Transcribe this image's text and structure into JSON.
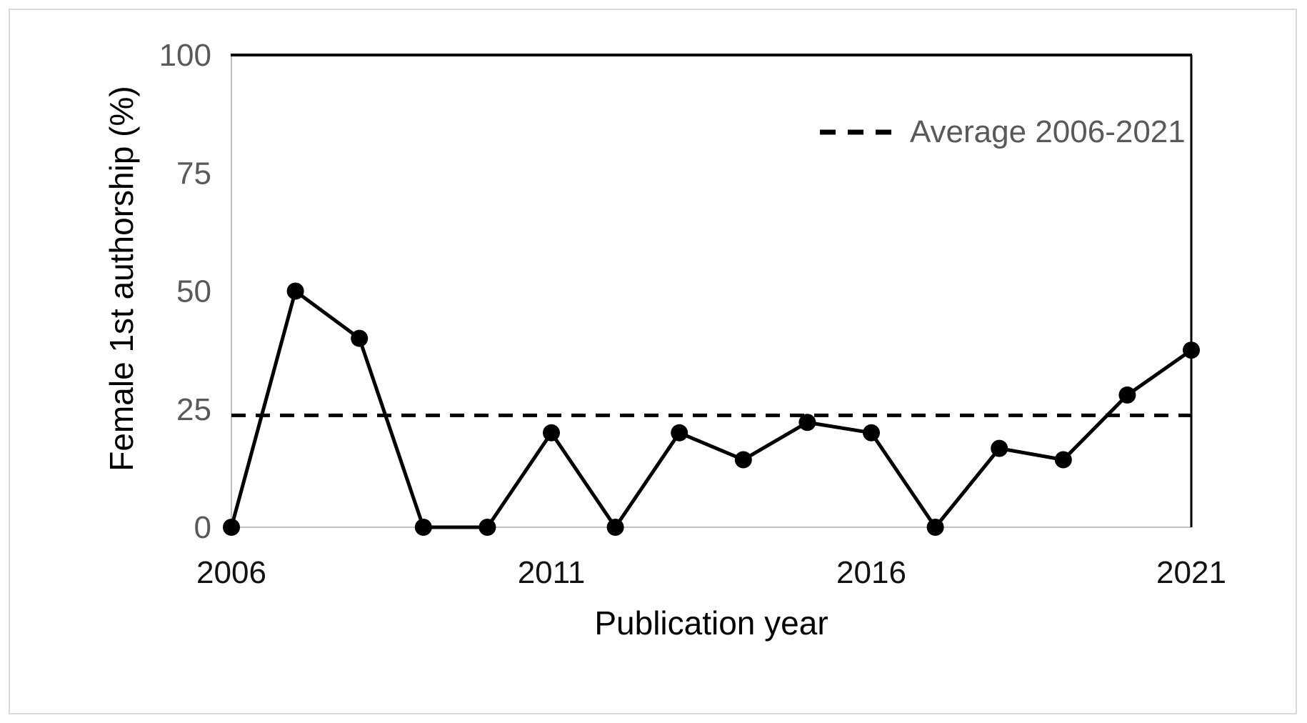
{
  "figure": {
    "y_axis_title": "Female 1st authorship (%)",
    "x_axis_title": "Publication year",
    "legend_label": "Average 2006-2021"
  },
  "chart_data": {
    "type": "line",
    "title": "",
    "xlabel": "Publication year",
    "ylabel": "Female 1st authorship (%)",
    "x": [
      2006,
      2007,
      2008,
      2009,
      2010,
      2011,
      2012,
      2013,
      2014,
      2015,
      2016,
      2017,
      2018,
      2019,
      2020,
      2021
    ],
    "series": [
      {
        "name": "Female 1st authorship (%)",
        "values": [
          0,
          50,
          40,
          0,
          0,
          20,
          0,
          20,
          14.3,
          22.2,
          20,
          0,
          16.7,
          14.3,
          28,
          37.5
        ],
        "marker": "circle",
        "line_style": "solid"
      }
    ],
    "average_line": {
      "label": "Average 2006-2021",
      "value": 23.7,
      "line_style": "dashed"
    },
    "ylim": [
      0,
      100
    ],
    "xlim": [
      2006,
      2021
    ],
    "yticks": [
      0,
      25,
      50,
      75,
      100
    ],
    "xticks": [
      2006,
      2011,
      2016,
      2021
    ],
    "grid": false,
    "legend_position": "top-right-inside",
    "colors": {
      "series": "#000000",
      "average_line": "#000000",
      "y_tick_label": "#595959",
      "x_tick_label": "#111111",
      "axis_title": "#000000",
      "legend_text": "#595959",
      "axis_line_gray": "#bfbfbf",
      "plot_border_black": "#000000",
      "figure_frame": "#d9d9d9",
      "background": "#ffffff"
    }
  }
}
